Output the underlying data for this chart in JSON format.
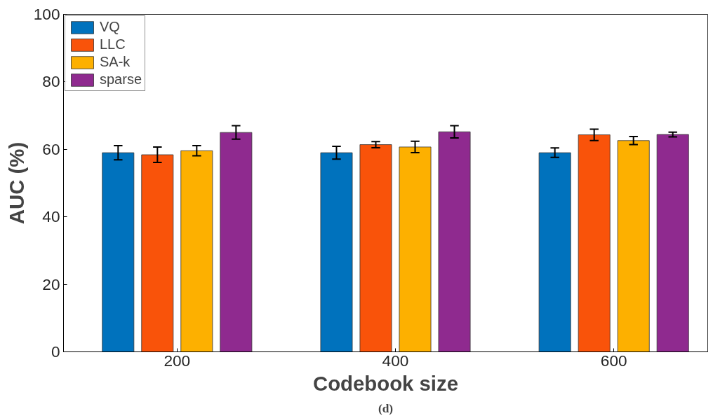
{
  "chart_data": {
    "type": "bar",
    "xlabel": "Codebook size",
    "ylabel": "AUC (%)",
    "categories": [
      "200",
      "400",
      "600"
    ],
    "series": [
      {
        "name": "VQ",
        "color": "#0072bd",
        "values": [
          59.0,
          59.0,
          59.0
        ],
        "errors": [
          2.1,
          1.9,
          1.4
        ]
      },
      {
        "name": "LLC",
        "color": "#f9530a",
        "values": [
          58.4,
          61.4,
          64.3
        ],
        "errors": [
          2.3,
          0.9,
          1.7
        ]
      },
      {
        "name": "SA-k",
        "color": "#fdb000",
        "values": [
          59.6,
          60.7,
          62.6
        ],
        "errors": [
          1.5,
          1.7,
          1.2
        ]
      },
      {
        "name": "sparse",
        "color": "#8f2a8f",
        "values": [
          65.0,
          65.2,
          64.4
        ],
        "errors": [
          2.0,
          1.8,
          0.7
        ]
      }
    ],
    "ylim": [
      0,
      100
    ],
    "yticks": [
      0,
      20,
      40,
      60,
      80,
      100
    ],
    "grid": false,
    "legend": "top left",
    "annotations": [
      "(d)"
    ]
  }
}
